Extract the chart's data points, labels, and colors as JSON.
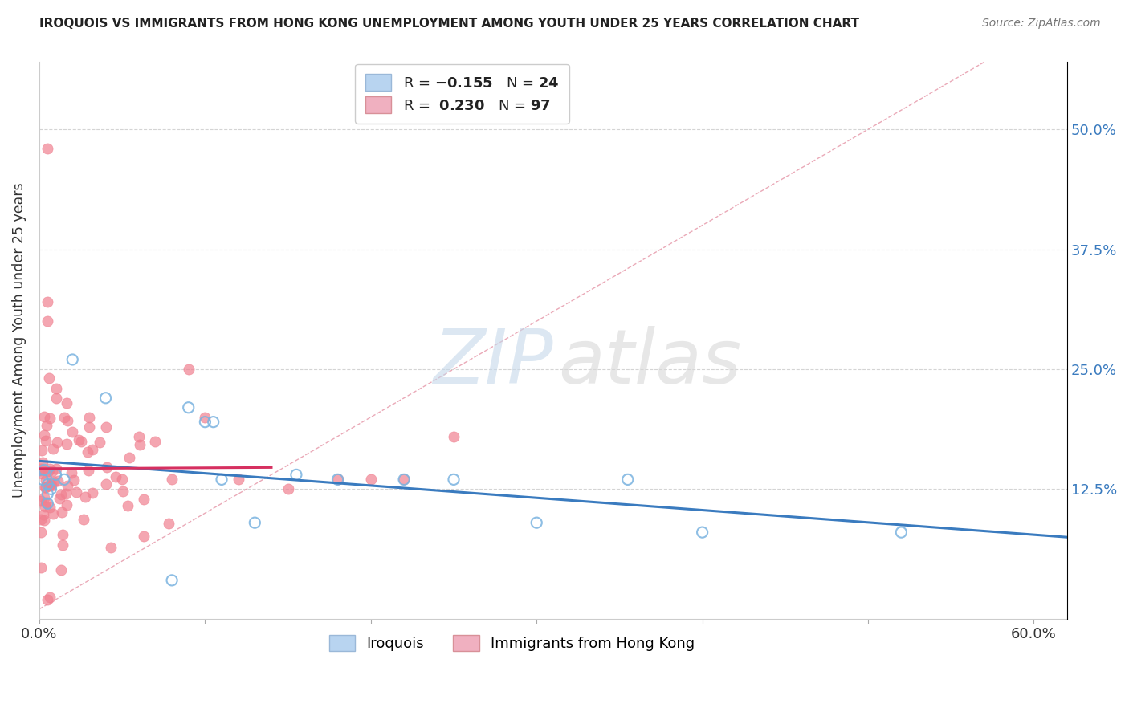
{
  "title": "IROQUOIS VS IMMIGRANTS FROM HONG KONG UNEMPLOYMENT AMONG YOUTH UNDER 25 YEARS CORRELATION CHART",
  "source": "Source: ZipAtlas.com",
  "ylabel": "Unemployment Among Youth under 25 years",
  "xlim": [
    0.0,
    0.62
  ],
  "ylim": [
    -0.01,
    0.57
  ],
  "xtick_positions": [
    0.0,
    0.1,
    0.2,
    0.3,
    0.4,
    0.5,
    0.6
  ],
  "xtick_labels": [
    "0.0%",
    "",
    "",
    "",
    "",
    "",
    "60.0%"
  ],
  "ytick_positions": [
    0.0,
    0.125,
    0.25,
    0.375,
    0.5
  ],
  "ytick_labels": [
    "",
    "12.5%",
    "25.0%",
    "37.5%",
    "50.0%"
  ],
  "legend_iroquois_label": "Iroquois",
  "legend_hk_label": "Immigrants from Hong Kong",
  "r_iroquois": -0.155,
  "n_iroquois": 24,
  "r_hk": 0.23,
  "n_hk": 97,
  "color_iroquois_fill": "none",
  "color_iroquois_edge": "#7ab3e0",
  "color_hk_fill": "#f08090",
  "color_hk_edge": "#f08090",
  "color_trend_iroquois": "#3a7bbf",
  "color_trend_hk": "#d63060",
  "color_diagonal": "#e8a0b0",
  "background_color": "#ffffff",
  "watermark_zip": "ZIP",
  "watermark_atlas": "atlas",
  "grid_color": "#d0d0d0",
  "ytick_color": "#3a7bbf"
}
